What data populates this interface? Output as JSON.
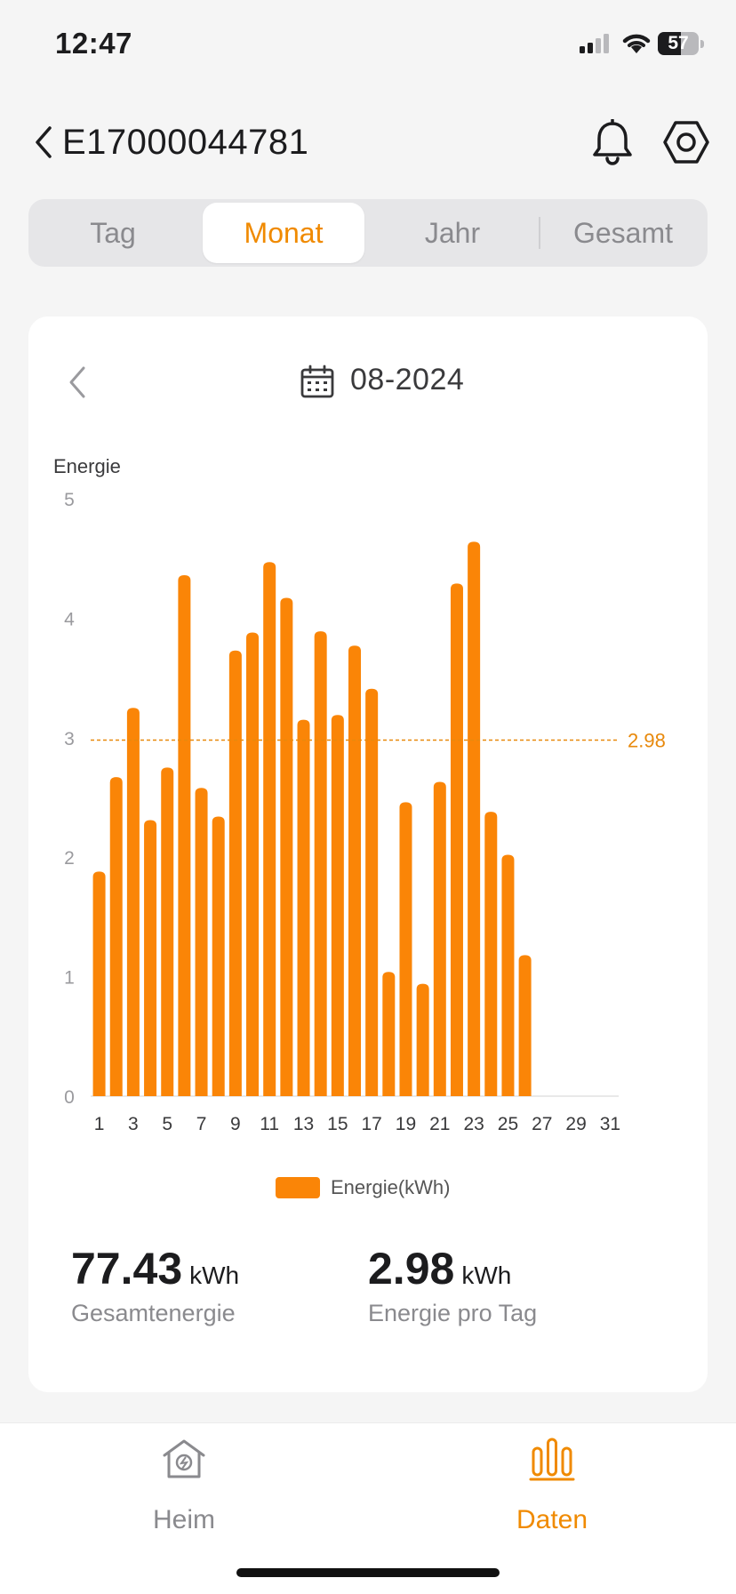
{
  "status_bar": {
    "time": "12:47",
    "battery": "57"
  },
  "header": {
    "device_id": "E17000044781"
  },
  "period_tabs": [
    {
      "label": "Tag",
      "active": false
    },
    {
      "label": "Monat",
      "active": true
    },
    {
      "label": "Jahr",
      "active": false
    },
    {
      "label": "Gesamt",
      "active": false
    }
  ],
  "date_selector": {
    "value": "08-2024"
  },
  "chart_data": {
    "type": "bar",
    "ylabel": "Energie",
    "ylim": [
      0,
      5
    ],
    "yticks": [
      "0",
      "1",
      "2",
      "3",
      "4",
      "5"
    ],
    "x_tick_labels": [
      "1",
      "3",
      "5",
      "7",
      "9",
      "11",
      "13",
      "15",
      "17",
      "19",
      "21",
      "23",
      "25",
      "27",
      "29",
      "31"
    ],
    "categories": [
      "1",
      "2",
      "3",
      "4",
      "5",
      "6",
      "7",
      "8",
      "9",
      "10",
      "11",
      "12",
      "13",
      "14",
      "15",
      "16",
      "17",
      "18",
      "19",
      "20",
      "21",
      "22",
      "23",
      "24",
      "25",
      "26",
      "27",
      "28",
      "29",
      "30",
      "31"
    ],
    "series": [
      {
        "name": "Energie(kWh)",
        "values": [
          1.88,
          2.67,
          3.25,
          2.31,
          2.75,
          4.36,
          2.58,
          2.34,
          3.73,
          3.88,
          4.47,
          4.17,
          3.15,
          3.89,
          3.19,
          3.77,
          3.41,
          1.04,
          2.46,
          0.94,
          2.63,
          4.29,
          4.64,
          2.38,
          2.02,
          1.18,
          null,
          null,
          null,
          null,
          null
        ]
      }
    ],
    "average_line": {
      "value": 2.98,
      "label": "2.98"
    },
    "colors": {
      "bar": "#fa8507",
      "average": "#e8890c"
    }
  },
  "legend": {
    "label": "Energie(kWh)"
  },
  "stats": [
    {
      "value": "77.43",
      "unit": "kWh",
      "caption": "Gesamtenergie"
    },
    {
      "value": "2.98",
      "unit": "kWh",
      "caption": "Energie pro Tag"
    }
  ],
  "tab_bar": [
    {
      "label": "Heim",
      "icon": "house-icon",
      "active": false
    },
    {
      "label": "Daten",
      "icon": "bar-chart-icon",
      "active": true
    }
  ],
  "colors": {
    "accent": "#f08a00",
    "inactive": "#8a8a8e"
  }
}
